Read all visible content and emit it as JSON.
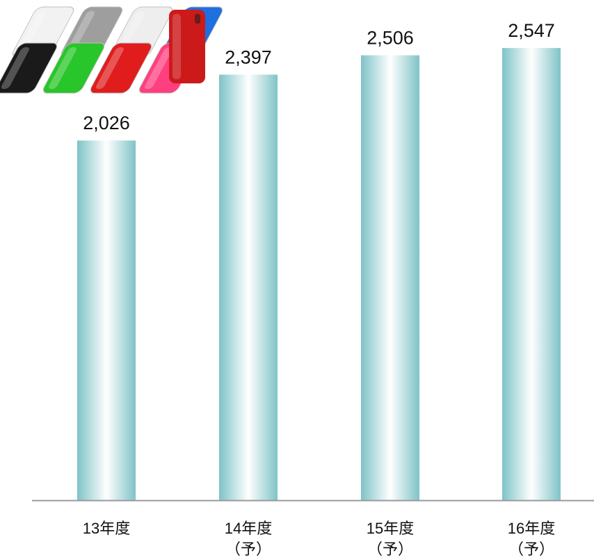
{
  "chart_data": {
    "type": "bar",
    "title": "",
    "xlabel": "",
    "ylabel": "",
    "categories": [
      [
        "13年度"
      ],
      [
        "14年度",
        "（予）"
      ],
      [
        "15年度",
        "（予）"
      ],
      [
        "16年度",
        "（予）"
      ]
    ],
    "values": [
      2026,
      2397,
      2506,
      2547
    ],
    "value_labels": [
      "2,026",
      "2,397",
      "2,506",
      "2,547"
    ],
    "ylim": [
      0,
      2700
    ],
    "grid": false,
    "legend": "none",
    "bar_colors": {
      "edge": "#7fc3c7",
      "center": "#ffffff"
    },
    "axis_color": "#9a9a9a"
  },
  "decor": {
    "image": "phone-cases-photo",
    "cases": [
      {
        "color": "#f2f2f2",
        "row": 0
      },
      {
        "color": "#9e9e9e",
        "row": 0
      },
      {
        "color": "#eeeeee",
        "row": 0
      },
      {
        "color": "#1e6fe0",
        "row": 0
      },
      {
        "color": "#1a1a1a",
        "row": 1
      },
      {
        "color": "#28c62a",
        "row": 1
      },
      {
        "color": "#e01c1c",
        "row": 1
      },
      {
        "color": "#ff3f7f",
        "row": 1
      }
    ],
    "featured_case_color": "#cc1a1a"
  }
}
